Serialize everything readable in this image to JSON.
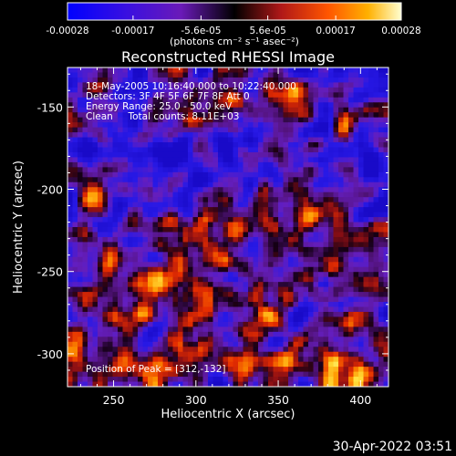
{
  "colorbar": {
    "tick_labels": [
      "-0.00028",
      "-0.00017",
      "-5.6e-05",
      "5.6e-05",
      "0.00017",
      "0.00028"
    ],
    "tick_values": [
      -0.00028,
      -0.00017,
      -5.6e-05,
      5.6e-05,
      0.00017,
      0.00028
    ],
    "range": [
      -0.00028,
      0.00028
    ],
    "unit_label": "(photons cm⁻² s⁻¹ asec⁻²)"
  },
  "chart_data": {
    "type": "heatmap",
    "title": "Reconstructed RHESSI Image",
    "xlabel": "Heliocentric X (arcsec)",
    "ylabel": "Heliocentric Y (arcsec)",
    "xlim": [
      222,
      417
    ],
    "ylim": [
      -320,
      -126
    ],
    "xticks": [
      250,
      300,
      350,
      400
    ],
    "yticks": [
      -150,
      -200,
      -250,
      -300
    ],
    "x_tick_labels": [
      "250",
      "300",
      "350",
      "400"
    ],
    "y_tick_labels": [
      "-150",
      "-200",
      "-250",
      "-300"
    ],
    "colormap": [
      "#000000",
      "#2a00ff",
      "#6e1fc2",
      "#a01858",
      "#ff3000",
      "#ff9800",
      "#ffffc8"
    ],
    "annotations": [
      "18-May-2005 10:16:40.000 to 10:22:40.000",
      "Detectors: 3F 4F 5F 6F 7F 8F  Att 0",
      "Energy Range: 25.0 - 50.0 keV",
      "Clean     Total counts: 8.11E+03",
      "Position of Peak = [312,-132]"
    ]
  },
  "footer": {
    "timestamp": "30-Apr-2022 03:51"
  }
}
